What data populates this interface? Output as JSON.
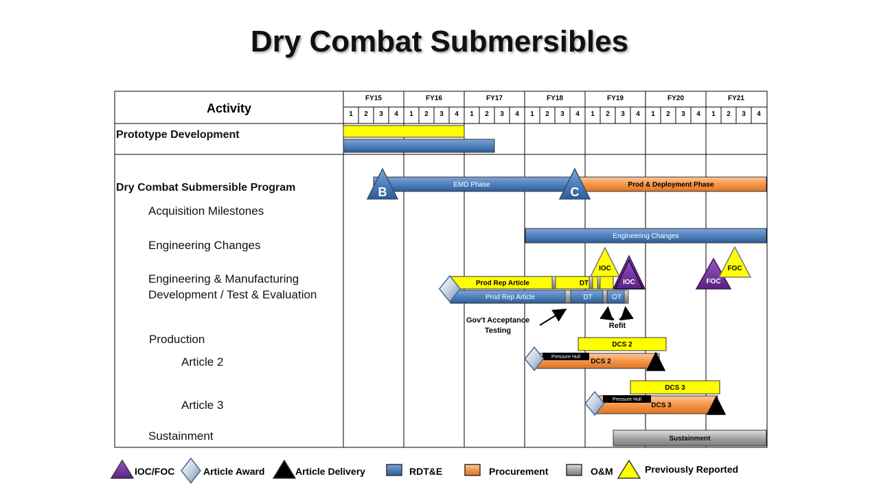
{
  "title": "Dry Combat Submersibles",
  "chart_data": {
    "type": "gantt",
    "activity_header": "Activity",
    "fiscal_years": [
      "FY15",
      "FY16",
      "FY17",
      "FY18",
      "FY19",
      "FY20",
      "FY21"
    ],
    "quarters": [
      "1",
      "2",
      "3",
      "4"
    ],
    "rows": {
      "prototype": "Prototype Development",
      "program": "Dry Combat Submersible Program",
      "milestones": "Acquisition Milestones",
      "eng_changes": "Engineering Changes",
      "emd_line1": "Engineering & Manufacturing",
      "emd_line2": "Development / Test & Evaluation",
      "production": "Production",
      "article2": "Article 2",
      "article3": "Article 3",
      "sustainment": "Sustainment"
    },
    "bars": [
      {
        "id": "proto-prev",
        "row": "prototype",
        "type": "previously_reported",
        "start": "FY15 Q1",
        "end": "FY16 Q4",
        "label": ""
      },
      {
        "id": "proto-rdte",
        "row": "prototype",
        "type": "RDT&E",
        "start": "FY15 Q1",
        "end": "FY17 Q2",
        "label": ""
      },
      {
        "id": "emd-phase",
        "row": "milestones",
        "type": "RDT&E",
        "start": "FY15 Q3",
        "end": "FY18 Q3",
        "label": "EMD Phase"
      },
      {
        "id": "prod-deploy",
        "row": "milestones",
        "type": "Procurement",
        "start": "FY18 Q4",
        "end": "FY21 Q4",
        "label": "Prod & Deployment Phase"
      },
      {
        "id": "eng-changes",
        "row": "eng_changes",
        "type": "RDT&E",
        "start": "FY18 Q1",
        "end": "FY21 Q4",
        "label": "Engineering Changes"
      },
      {
        "id": "rep-prev",
        "row": "emd",
        "type": "previously_reported",
        "start": "FY16 Q4",
        "end": "FY18 Q2",
        "label": "Prod Rep Article"
      },
      {
        "id": "dt-prev",
        "row": "emd",
        "type": "previously_reported",
        "start": "FY18 Q2",
        "end": "FY18 Q3",
        "label": "DT"
      },
      {
        "id": "rep-rdte",
        "row": "emd",
        "type": "RDT&E",
        "start": "FY16 Q4",
        "end": "FY18 Q2",
        "label": "Prod Rep Article"
      },
      {
        "id": "dt-rdte",
        "row": "emd",
        "type": "RDT&E",
        "start": "FY18 Q3",
        "end": "FY19 Q1",
        "label": "DT"
      },
      {
        "id": "ot-rdte",
        "row": "emd",
        "type": "RDT&E",
        "start": "FY19 Q2",
        "end": "FY19 Q3",
        "label": "OT"
      },
      {
        "id": "dcs2-prev",
        "row": "article2",
        "type": "previously_reported",
        "start": "FY19 Q1",
        "end": "FY20 Q2",
        "label": "DCS 2"
      },
      {
        "id": "dcs2-proc",
        "row": "article2",
        "type": "Procurement",
        "start": "FY18 Q1",
        "end": "FY20 Q1",
        "label": "DCS 2"
      },
      {
        "id": "ph2",
        "row": "article2",
        "type": "label",
        "start": "FY18 Q1",
        "end": "FY18 Q4",
        "label": "Pressure Hull"
      },
      {
        "id": "dcs3-prev",
        "row": "article3",
        "type": "previously_reported",
        "start": "FY19 Q3",
        "end": "FY21 Q1",
        "label": "DCS 3"
      },
      {
        "id": "dcs3-proc",
        "row": "article3",
        "type": "Procurement",
        "start": "FY19 Q1",
        "end": "FY21 Q1",
        "label": "DCS 3"
      },
      {
        "id": "ph3",
        "row": "article3",
        "type": "label",
        "start": "FY19 Q1",
        "end": "FY20 Q1",
        "label": "Pressure Hull"
      },
      {
        "id": "sustain",
        "row": "sustainment",
        "type": "O&M",
        "start": "FY19 Q2",
        "end": "FY21 Q4",
        "label": "Sustainment"
      }
    ],
    "milestones": [
      {
        "id": "ms-b",
        "label": "B",
        "type": "milestone",
        "time": "FY15 Q3"
      },
      {
        "id": "ms-c",
        "label": "C",
        "type": "milestone",
        "time": "FY18 Q4"
      },
      {
        "id": "ioc-prev",
        "label": "IOC",
        "type": "previously_reported",
        "time": "FY19 Q2"
      },
      {
        "id": "ioc",
        "label": "IOC",
        "type": "IOC/FOC",
        "time": "FY19 Q3"
      },
      {
        "id": "foc",
        "label": "FOC",
        "type": "IOC/FOC",
        "time": "FY20 Q4"
      },
      {
        "id": "foc-prev",
        "label": "FOC",
        "type": "previously_reported",
        "time": "FY21 Q1"
      },
      {
        "id": "award-emd",
        "label": "",
        "type": "Article Award",
        "time": "FY16 Q4"
      },
      {
        "id": "award-a2",
        "label": "",
        "type": "Article Award",
        "time": "FY18 Q1"
      },
      {
        "id": "award-a3",
        "label": "",
        "type": "Article Award",
        "time": "FY19 Q1"
      },
      {
        "id": "deliv-a2",
        "label": "",
        "type": "Article Delivery",
        "time": "FY20 Q1"
      },
      {
        "id": "deliv-a3",
        "label": "",
        "type": "Article Delivery",
        "time": "FY21 Q1"
      }
    ],
    "annotations": {
      "gov_line1": "Gov't Acceptance",
      "gov_line2": "Testing",
      "refit": "Refit"
    },
    "legend": [
      {
        "key": "ioc_foc",
        "label": "IOC/FOC",
        "symbol": "triangle",
        "color": "#7030a0"
      },
      {
        "key": "award",
        "label": "Article Award",
        "symbol": "diamond",
        "color": "#8fa8c8"
      },
      {
        "key": "delivery",
        "label": "Article Delivery",
        "symbol": "triangle",
        "color": "#000000"
      },
      {
        "key": "rdte",
        "label": "RDT&E",
        "symbol": "box",
        "color": "#4f81bd"
      },
      {
        "key": "proc",
        "label": "Procurement",
        "symbol": "box",
        "color": "#f79646"
      },
      {
        "key": "om",
        "label": "O&M",
        "symbol": "box",
        "color": "#a6a6a6"
      },
      {
        "key": "prev",
        "label": "Previously Reported",
        "symbol": "triangle",
        "color": "#ffff00"
      }
    ],
    "colors": {
      "rdte": "#4f81bd",
      "procurement": "#f79646",
      "om": "#a6a6a6",
      "previously_reported": "#ffff00",
      "ioc_foc": "#7030a0",
      "award": "#8fa8c8",
      "delivery": "#000000"
    }
  }
}
